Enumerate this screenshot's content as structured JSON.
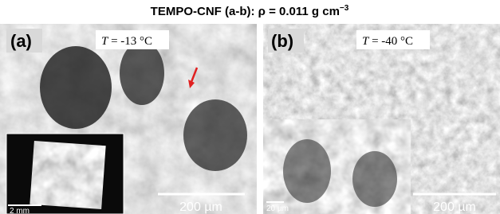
{
  "title": {
    "text": "TEMPO-CNF (a-b): ρ = 0.011 g cm",
    "superscript": "−3"
  },
  "panels": [
    {
      "label": "(a)",
      "temperature": {
        "symbol": "T",
        "value": " = -13 °C"
      },
      "scale_bar": "200 µm",
      "inset_scale_bar": "2 mm"
    },
    {
      "label": "(b)",
      "temperature": {
        "symbol": "T",
        "value": " = -40 °C"
      },
      "scale_bar": "200 µm",
      "inset_scale_bar": "20 µm"
    }
  ]
}
